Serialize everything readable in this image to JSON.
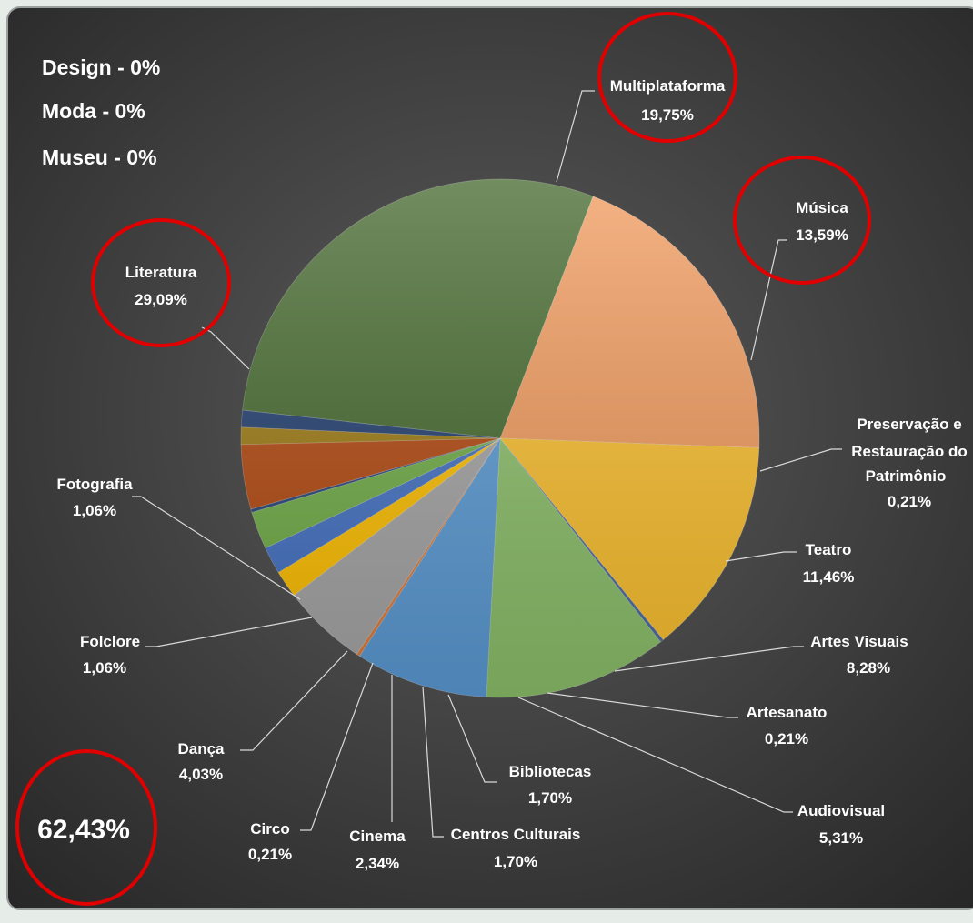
{
  "chart_data": {
    "type": "pie",
    "zero_categories": [
      "Design - 0%",
      "Moda - 0%",
      "Museu - 0%"
    ],
    "highlight_value": "62,43%",
    "slices": [
      {
        "name": "Multiplataforma",
        "value": 19.75,
        "label": "19,75%",
        "color": "#f29a5c"
      },
      {
        "name": "Música",
        "value": 13.59,
        "label": "13,59%",
        "color": "#fbc02d"
      },
      {
        "name": "Preservação e Restauração do Patrimônio",
        "value": 0.21,
        "label": "0,21%",
        "color": "#4c6a9e"
      },
      {
        "name": "Teatro",
        "value": 11.46,
        "label": "11,46%",
        "color": "#8cc06a"
      },
      {
        "name": "Artes Visuais",
        "value": 8.28,
        "label": "8,28%",
        "color": "#5b9bd5"
      },
      {
        "name": "Artesanato",
        "value": 0.21,
        "label": "0,21%",
        "color": "#e07b39"
      },
      {
        "name": "Audiovisual",
        "value": 5.31,
        "label": "5,31%",
        "color": "#a5a5a5"
      },
      {
        "name": "Bibliotecas",
        "value": 1.7,
        "label": "1,70%",
        "color": "#ffc000"
      },
      {
        "name": "Centros Culturais",
        "value": 1.7,
        "label": "1,70%",
        "color": "#4472c4"
      },
      {
        "name": "Cinema",
        "value": 2.34,
        "label": "2,34%",
        "color": "#70ad47"
      },
      {
        "name": "Circo",
        "value": 0.21,
        "label": "0,21%",
        "color": "#264478"
      },
      {
        "name": "Dança",
        "value": 4.03,
        "label": "4,03%",
        "color": "#b4480f"
      },
      {
        "name": "Folclore",
        "value": 1.06,
        "label": "1,06%",
        "color": "#9e7a10"
      },
      {
        "name": "Fotografia",
        "value": 1.06,
        "label": "1,06%",
        "color": "#1f3c6e"
      },
      {
        "name": "Literatura",
        "value": 29.09,
        "label": "29,09%",
        "color": "#43682c"
      }
    ]
  }
}
